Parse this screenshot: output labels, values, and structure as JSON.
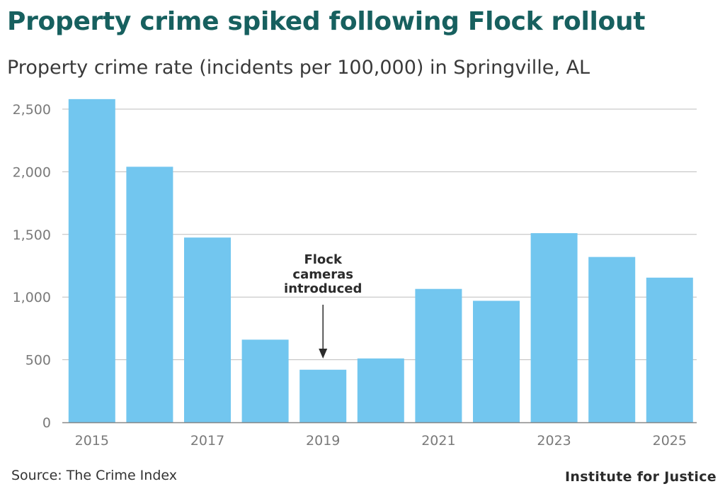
{
  "header": {
    "title": "Property crime spiked following Flock rollout",
    "subtitle": "Property crime rate (incidents per 100,000) in Springville, AL"
  },
  "footer": {
    "source": "Source: The Crime Index",
    "brand": "Institute for Justice"
  },
  "colors": {
    "bar": "#72c6ef",
    "grid": "#bdbdbd",
    "axis": "#888888",
    "title": "#17605f",
    "annotation": "#2b2b2b"
  },
  "chart_data": {
    "type": "bar",
    "title": "Property crime spiked following Flock rollout",
    "subtitle": "Property crime rate (incidents per 100,000) in Springville, AL",
    "categories": [
      "2015",
      "2016",
      "2017",
      "2018",
      "2019",
      "2020",
      "2021",
      "2022",
      "2023",
      "2024",
      "2025"
    ],
    "values": [
      2580,
      2040,
      1475,
      660,
      420,
      510,
      1065,
      970,
      1510,
      1320,
      1155
    ],
    "x_tick_labels": [
      "2015",
      "",
      "2017",
      "",
      "2019",
      "",
      "2021",
      "",
      "2023",
      "",
      "2025"
    ],
    "y_ticks": [
      0,
      500,
      1000,
      1500,
      2000,
      2500
    ],
    "y_tick_labels": [
      "0",
      "500",
      "1,000",
      "1,500",
      "2,000",
      "2,500"
    ],
    "ylim": [
      0,
      2600
    ],
    "xlabel": "",
    "ylabel": "",
    "grid": "horizontal",
    "legend": "none",
    "annotations": [
      {
        "category": "2019",
        "lines": [
          "Flock",
          "cameras",
          "introduced"
        ],
        "style": "arrow-down"
      }
    ]
  }
}
